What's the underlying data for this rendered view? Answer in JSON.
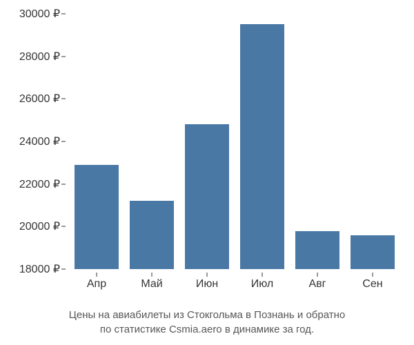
{
  "chart": {
    "type": "bar",
    "categories": [
      "Апр",
      "Май",
      "Июн",
      "Июл",
      "Авг",
      "Сен"
    ],
    "values": [
      22900,
      21200,
      24800,
      29500,
      19800,
      19600
    ],
    "bar_color": "#4a78a5",
    "bar_width_ratio": 0.8,
    "ylim": [
      18000,
      30000
    ],
    "ytick_step": 2000,
    "y_suffix": " ₽",
    "background_color": "#ffffff",
    "axis_color": "#333333",
    "tick_fontsize": 16,
    "caption_fontsize": 15,
    "caption_color": "#555555",
    "caption_line1": "Цены на авиабилеты из Стокгольма в Познань и обратно",
    "caption_line2": "по статистике Csmia.aero в динамике за год."
  }
}
